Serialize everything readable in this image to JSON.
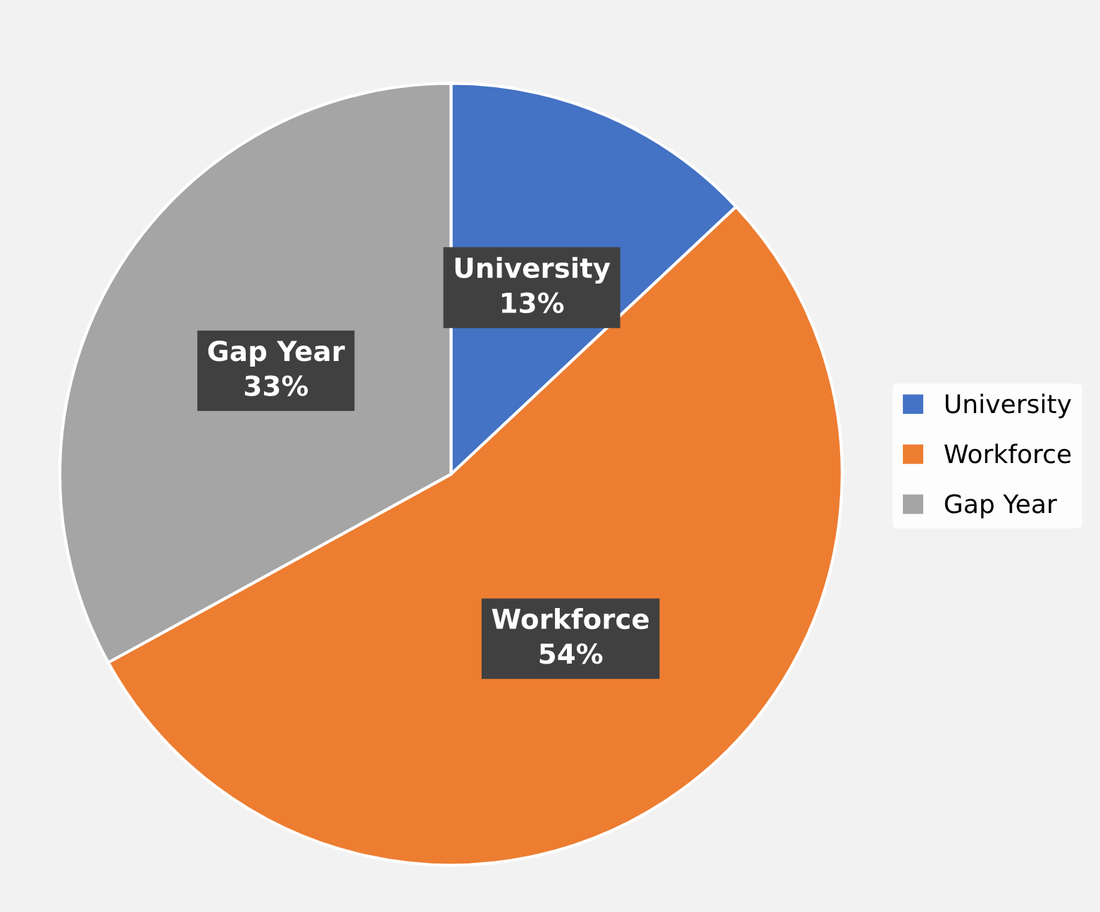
{
  "chart_data": {
    "type": "pie",
    "categories": [
      "University",
      "Workforce",
      "Gap Year"
    ],
    "values": [
      13,
      54,
      33
    ],
    "colors": [
      "#4472c4",
      "#ed7d31",
      "#a5a5a5"
    ],
    "value_labels": [
      "13%",
      "54%",
      "33%"
    ],
    "legend": "right"
  }
}
